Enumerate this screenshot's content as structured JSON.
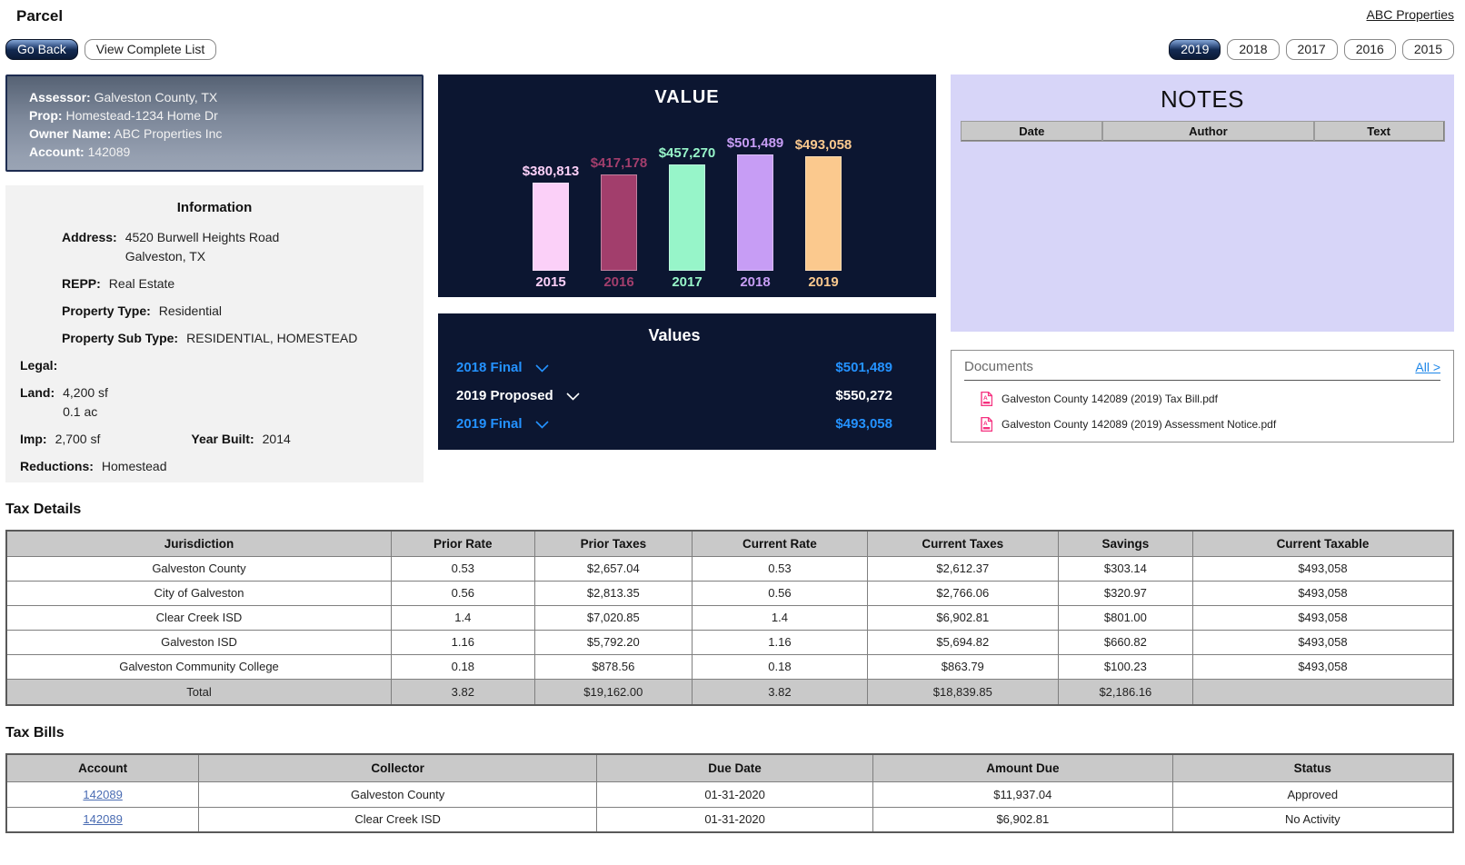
{
  "page": {
    "title": "Parcel",
    "portfolio_link": "ABC Properties"
  },
  "toolbar": {
    "go_back": "Go Back",
    "view_complete_list": "View Complete List",
    "years": [
      {
        "label": "2019",
        "selected": true
      },
      {
        "label": "2018",
        "selected": false
      },
      {
        "label": "2017",
        "selected": false
      },
      {
        "label": "2016",
        "selected": false
      },
      {
        "label": "2015",
        "selected": false
      }
    ]
  },
  "assessor_card": {
    "assessor_label": "Assessor:",
    "assessor": "Galveston County, TX",
    "prop_label": "Prop:",
    "prop": "Homestead-1234 Home Dr",
    "owner_label": "Owner Name:",
    "owner": "ABC Properties Inc",
    "account_label": "Account:",
    "account": "142089"
  },
  "information": {
    "title": "Information",
    "address_label": "Address:",
    "address_line1": "4520 Burwell Heights Road",
    "address_line2": "Galveston, TX",
    "repp_label": "REPP:",
    "repp": "Real Estate",
    "property_type_label": "Property Type:",
    "property_type": "Residential",
    "property_sub_type_label": "Property Sub Type:",
    "property_sub_type": "RESIDENTIAL, HOMESTEAD",
    "legal_label": "Legal:",
    "legal": "",
    "land_label": "Land:",
    "land_sf": "4,200 sf",
    "land_ac": "0.1 ac",
    "imp_label": "Imp:",
    "imp": "2,700 sf",
    "year_built_label": "Year Built:",
    "year_built": "2014",
    "reductions_label": "Reductions:",
    "reductions": "Homestead"
  },
  "chart_data": {
    "type": "bar",
    "title": "VALUE",
    "categories": [
      "2015",
      "2016",
      "2017",
      "2018",
      "2019"
    ],
    "values": [
      380813,
      417178,
      457270,
      501489,
      493058
    ],
    "labels": [
      "$380,813",
      "$417,178",
      "$457,270",
      "$501,489",
      "$493,058"
    ],
    "colors": [
      "#fbd0f8",
      "#a23e6c",
      "#97f5c9",
      "#c79df5",
      "#fbc98e"
    ],
    "background": "#0c1631",
    "xlabel": "",
    "ylabel": "",
    "ylim": [
      0,
      501489
    ],
    "grid": false,
    "legend": false
  },
  "values_panel": {
    "title": "Values",
    "blue_color": "#2492ff",
    "rows": [
      {
        "label": "2018 Final",
        "value": "$501,489",
        "style": "blue"
      },
      {
        "label": "2019 Proposed",
        "value": "$550,272",
        "style": "white"
      },
      {
        "label": "2019 Final",
        "value": "$493,058",
        "style": "blue"
      }
    ]
  },
  "notes": {
    "title": "NOTES",
    "columns": [
      "Date",
      "Author",
      "Text"
    ],
    "rows": []
  },
  "documents": {
    "title": "Documents",
    "all_link": "All >",
    "files": [
      "Galveston County 142089 (2019) Tax Bill.pdf",
      "Galveston County 142089 (2019) Assessment Notice.pdf"
    ],
    "icon_color": "#f5317f"
  },
  "tax_details": {
    "title": "Tax Details",
    "columns": [
      "Jurisdiction",
      "Prior Rate",
      "Prior Taxes",
      "Current Rate",
      "Current Taxes",
      "Savings",
      "Current Taxable"
    ],
    "rows": [
      [
        "Galveston County",
        "0.53",
        "$2,657.04",
        "0.53",
        "$2,612.37",
        "$303.14",
        "$493,058"
      ],
      [
        "City of Galveston",
        "0.56",
        "$2,813.35",
        "0.56",
        "$2,766.06",
        "$320.97",
        "$493,058"
      ],
      [
        "Clear Creek ISD",
        "1.4",
        "$7,020.85",
        "1.4",
        "$6,902.81",
        "$801.00",
        "$493,058"
      ],
      [
        "Galveston ISD",
        "1.16",
        "$5,792.20",
        "1.16",
        "$5,694.82",
        "$660.82",
        "$493,058"
      ],
      [
        "Galveston Community College",
        "0.18",
        "$878.56",
        "0.18",
        "$863.79",
        "$100.23",
        "$493,058"
      ]
    ],
    "total_row": [
      "Total",
      "3.82",
      "$19,162.00",
      "3.82",
      "$18,839.85",
      "$2,186.16",
      ""
    ]
  },
  "tax_bills": {
    "title": "Tax Bills",
    "columns": [
      "Account",
      "Collector",
      "Due Date",
      "Amount Due",
      "Status"
    ],
    "rows": [
      {
        "account": "142089",
        "collector": "Galveston County",
        "due_date": "01-31-2020",
        "amount_due": "$11,937.04",
        "status": "Approved"
      },
      {
        "account": "142089",
        "collector": "Clear Creek ISD",
        "due_date": "01-31-2020",
        "amount_due": "$6,902.81",
        "status": "No Activity"
      }
    ]
  }
}
